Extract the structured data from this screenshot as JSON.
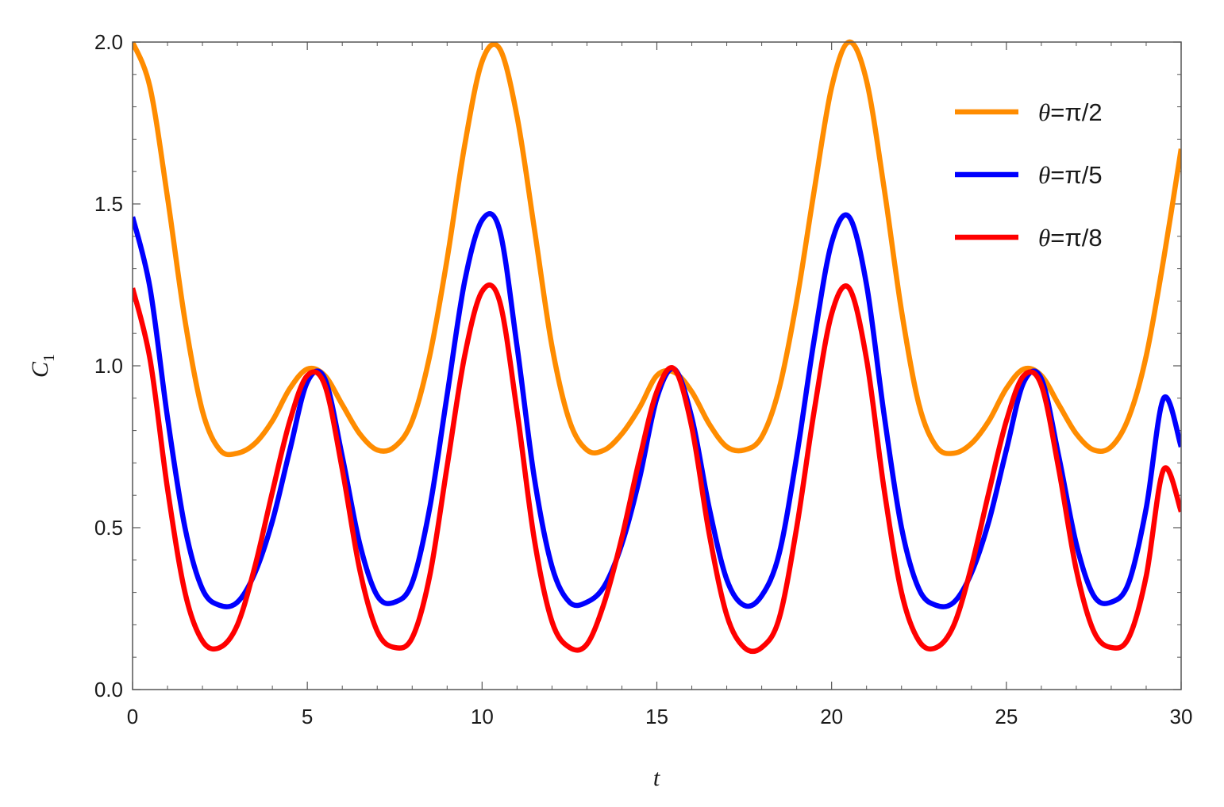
{
  "chart_data": {
    "type": "line",
    "xlabel": "t",
    "ylabel": {
      "base": "C",
      "sub": "1"
    },
    "xlim": [
      0,
      30
    ],
    "ylim": [
      0,
      2
    ],
    "x_ticks": [
      "0",
      "5",
      "10",
      "15",
      "20",
      "25",
      "30"
    ],
    "y_ticks": [
      "0.0",
      "0.5",
      "1.0",
      "1.5",
      "2.0"
    ],
    "grid": false,
    "legend_position": "top-right",
    "x": [
      0,
      0.5,
      1,
      1.5,
      2,
      2.5,
      3,
      3.5,
      4,
      4.5,
      5,
      5.5,
      6,
      6.5,
      7,
      7.5,
      8,
      8.5,
      9,
      9.5,
      10,
      10.5,
      11,
      11.5,
      12,
      12.5,
      13,
      13.5,
      14,
      14.5,
      15,
      15.5,
      16,
      16.5,
      17,
      17.5,
      18,
      18.5,
      19,
      19.5,
      20,
      20.5,
      21,
      21.5,
      22,
      22.5,
      23,
      23.5,
      24,
      24.5,
      25,
      25.5,
      26,
      26.5,
      27,
      27.5,
      28,
      28.5,
      29,
      29.5,
      30
    ],
    "series": [
      {
        "name": "θ=π/2",
        "color": "#ff8c00",
        "values": [
          2.0,
          1.86,
          1.52,
          1.14,
          0.86,
          0.74,
          0.73,
          0.76,
          0.83,
          0.93,
          0.99,
          0.97,
          0.88,
          0.79,
          0.74,
          0.75,
          0.83,
          1.03,
          1.33,
          1.68,
          1.94,
          1.98,
          1.77,
          1.42,
          1.06,
          0.83,
          0.74,
          0.74,
          0.79,
          0.87,
          0.97,
          0.98,
          0.92,
          0.82,
          0.75,
          0.74,
          0.78,
          0.93,
          1.2,
          1.54,
          1.86,
          2.0,
          1.88,
          1.55,
          1.17,
          0.88,
          0.75,
          0.73,
          0.76,
          0.83,
          0.93,
          0.99,
          0.97,
          0.88,
          0.79,
          0.74,
          0.75,
          0.84,
          1.03,
          1.33,
          1.67
        ]
      },
      {
        "name": "θ=π/5",
        "color": "#0000ff",
        "values": [
          1.46,
          1.24,
          0.84,
          0.5,
          0.31,
          0.26,
          0.27,
          0.36,
          0.52,
          0.74,
          0.95,
          0.96,
          0.72,
          0.45,
          0.29,
          0.27,
          0.33,
          0.56,
          0.91,
          1.26,
          1.45,
          1.42,
          1.06,
          0.65,
          0.38,
          0.27,
          0.27,
          0.32,
          0.45,
          0.65,
          0.9,
          0.99,
          0.84,
          0.56,
          0.34,
          0.26,
          0.29,
          0.42,
          0.72,
          1.08,
          1.38,
          1.46,
          1.25,
          0.85,
          0.5,
          0.31,
          0.26,
          0.27,
          0.36,
          0.52,
          0.74,
          0.95,
          0.96,
          0.72,
          0.45,
          0.29,
          0.27,
          0.33,
          0.56,
          0.9,
          0.75
        ]
      },
      {
        "name": "θ=π/8",
        "color": "#ff0000",
        "values": [
          1.24,
          1.02,
          0.62,
          0.3,
          0.15,
          0.13,
          0.2,
          0.38,
          0.61,
          0.83,
          0.97,
          0.94,
          0.68,
          0.37,
          0.18,
          0.13,
          0.16,
          0.35,
          0.69,
          1.03,
          1.23,
          1.2,
          0.86,
          0.46,
          0.21,
          0.13,
          0.14,
          0.27,
          0.47,
          0.71,
          0.92,
          0.99,
          0.81,
          0.48,
          0.23,
          0.13,
          0.13,
          0.22,
          0.5,
          0.86,
          1.16,
          1.24,
          1.02,
          0.62,
          0.3,
          0.15,
          0.13,
          0.2,
          0.38,
          0.61,
          0.83,
          0.97,
          0.94,
          0.68,
          0.37,
          0.18,
          0.13,
          0.16,
          0.35,
          0.68,
          0.55
        ]
      }
    ],
    "legend": [
      {
        "prefix": "θ",
        "text": "=π/2",
        "color": "#ff8c00"
      },
      {
        "prefix": "θ",
        "text": "=π/5",
        "color": "#0000ff"
      },
      {
        "prefix": "θ",
        "text": "=π/8",
        "color": "#ff0000"
      }
    ]
  }
}
